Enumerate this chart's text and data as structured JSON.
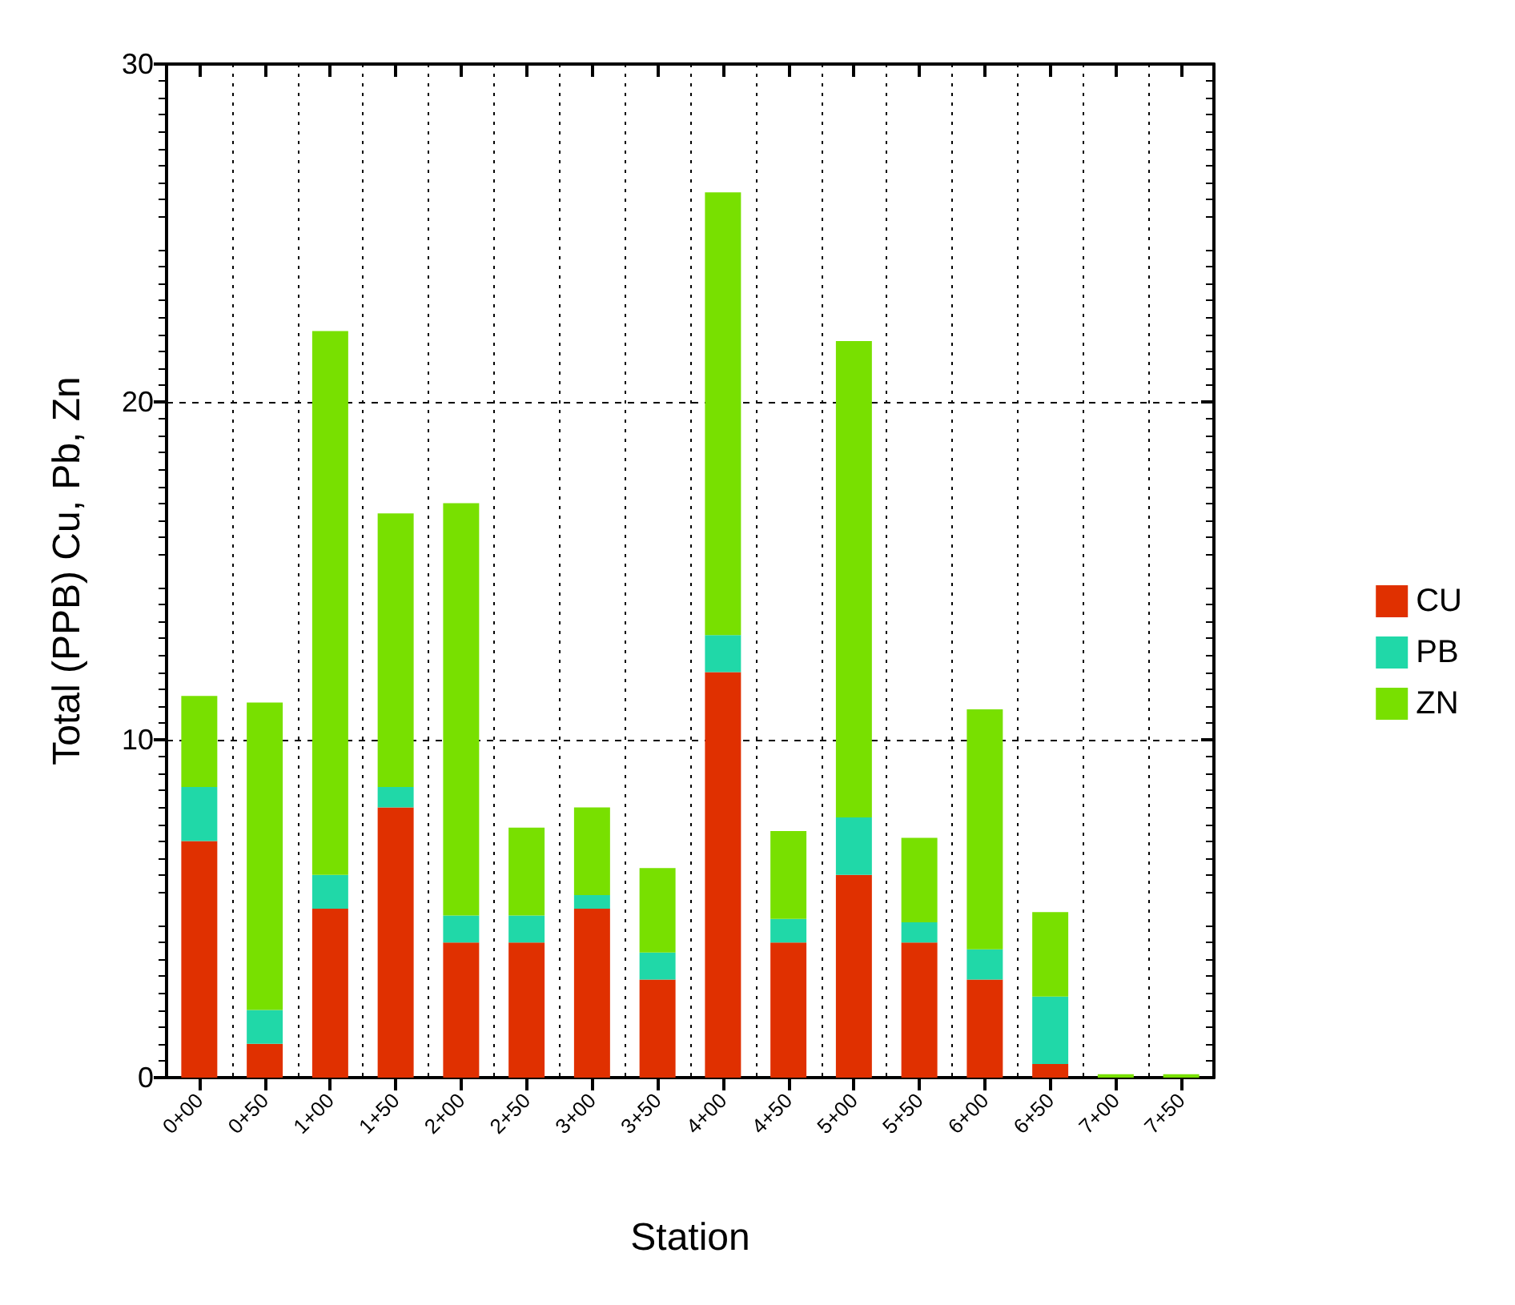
{
  "chart_data": {
    "type": "bar",
    "stacked": true,
    "xlabel": "Station",
    "ylabel": "Total (PPB) Cu, Pb, Zn",
    "categories": [
      "0+00",
      "0+50",
      "1+00",
      "1+50",
      "2+00",
      "2+50",
      "3+00",
      "3+50",
      "4+00",
      "4+50",
      "5+00",
      "5+50",
      "6+00",
      "6+50",
      "7+00",
      "7+50"
    ],
    "series": [
      {
        "name": "CU",
        "color": "#e03000",
        "values": [
          7,
          1,
          5,
          8,
          4,
          4,
          5,
          2.9,
          12,
          4,
          6,
          4,
          2.9,
          0.4,
          0,
          0
        ]
      },
      {
        "name": "PB",
        "color": "#20d8a8",
        "values": [
          1.6,
          1,
          1,
          0.6,
          0.8,
          0.8,
          0.4,
          0.8,
          1.1,
          0.7,
          1.7,
          0.6,
          0.9,
          2,
          0,
          0
        ]
      },
      {
        "name": "ZN",
        "color": "#78e000",
        "values": [
          2.7,
          9.1,
          16.1,
          8.1,
          12.2,
          2.6,
          2.6,
          2.5,
          13.1,
          2.6,
          14.1,
          2.5,
          7.1,
          2.5,
          0.1,
          0.1
        ]
      }
    ],
    "ylim": [
      0,
      30
    ],
    "yticks": [
      0,
      10,
      20,
      30
    ],
    "grid": true,
    "legend": "right"
  }
}
